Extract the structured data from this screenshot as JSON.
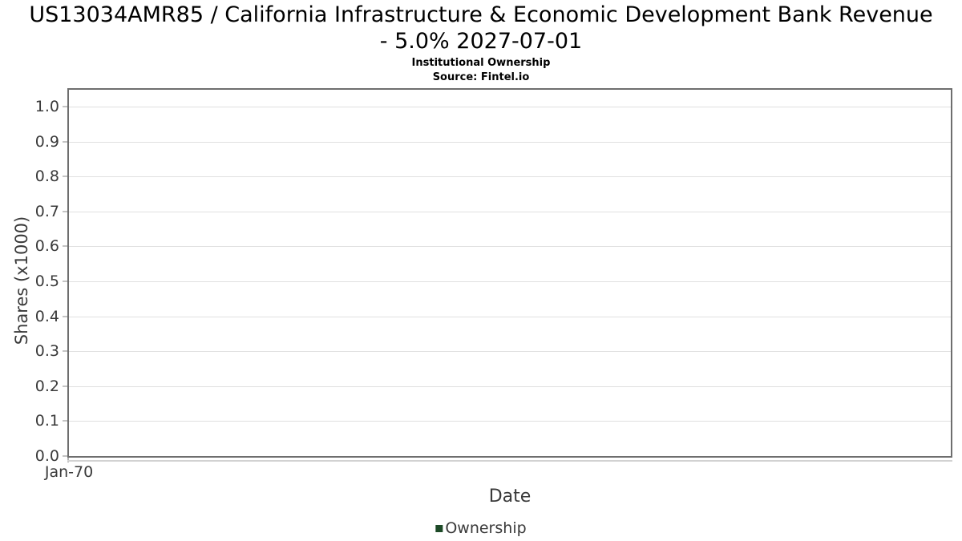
{
  "header": {
    "title_line1": "US13034AMR85 / California Infrastructure & Economic Development Bank Revenue",
    "title_line2": "- 5.0% 2027-07-01",
    "subtitle": "Institutional Ownership",
    "source": "Source: Fintel.io"
  },
  "legend": {
    "items": [
      {
        "label": "Ownership",
        "color": "#1d4a27"
      }
    ]
  },
  "colors": {
    "series_green": "#1d4a27",
    "plot_border": "#6e6e6e",
    "gridline": "#e0e0e0",
    "axis_text": "#3a3a3a"
  },
  "chart_data": {
    "type": "line",
    "title": "US13034AMR85 / California Infrastructure & Economic Development Bank Revenue - 5.0% 2027-07-01",
    "subtitle": "Institutional Ownership",
    "source": "Source: Fintel.io",
    "xlabel": "Date",
    "ylabel": "Shares (x1000)",
    "x_ticks": [
      "Jan-70"
    ],
    "y_ticks": [
      1.0,
      0.9,
      0.8,
      0.7,
      0.6,
      0.5,
      0.4,
      0.3,
      0.2,
      0.1,
      0.0
    ],
    "ylim": [
      0,
      1.048
    ],
    "grid": true,
    "legend_position": "bottom-center",
    "series": [
      {
        "name": "Ownership",
        "color": "#1d4a27",
        "x": [],
        "values": []
      }
    ]
  }
}
